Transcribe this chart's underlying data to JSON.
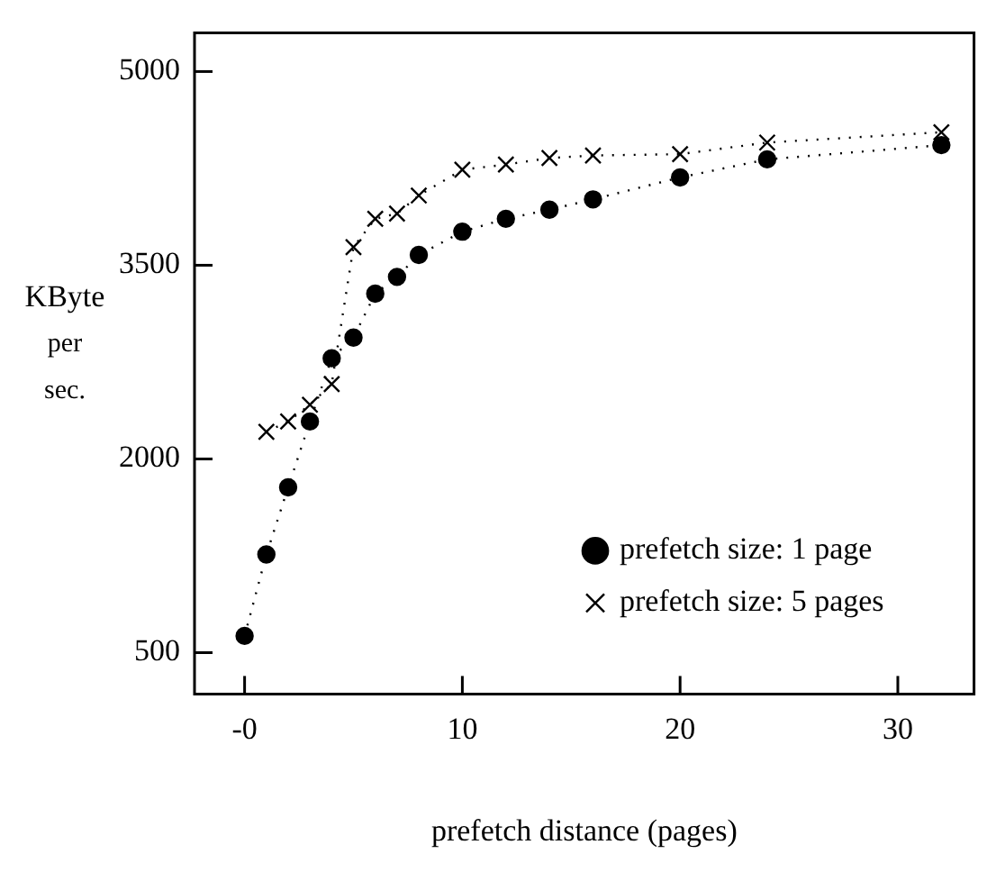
{
  "chart_data": {
    "type": "line",
    "xlabel": "prefetch distance (pages)",
    "ylabel": "KByte per sec.",
    "xlim": [
      -2.3,
      33.5
    ],
    "xticks": [
      {
        "value": 0,
        "label": "-0"
      },
      10,
      20,
      30
    ],
    "ylim": [
      180,
      5300
    ],
    "yticks": [
      500,
      2000,
      3500,
      5000
    ],
    "grid": false,
    "legend": "bottom right",
    "line_style": "dotted",
    "series": [
      {
        "name": "prefetch size: 1 page",
        "color": "#000000",
        "marker": "circle",
        "x": [
          0,
          1,
          2,
          3,
          4,
          5,
          6,
          7,
          8,
          10,
          12,
          14,
          16,
          20,
          24,
          32
        ],
        "values": [
          630,
          1260,
          1780,
          2290,
          2780,
          2940,
          3280,
          3410,
          3580,
          3760,
          3860,
          3930,
          4010,
          4180,
          4320,
          4430
        ]
      },
      {
        "name": "prefetch size: 5 pages",
        "color": "#000000",
        "marker": "cross",
        "x": [
          1,
          2,
          3,
          4,
          5,
          6,
          7,
          8,
          10,
          12,
          14,
          16,
          20,
          24,
          32
        ],
        "values": [
          2210,
          2290,
          2420,
          2580,
          3640,
          3860,
          3900,
          4040,
          4240,
          4280,
          4330,
          4350,
          4360,
          4450,
          4530
        ]
      }
    ]
  }
}
